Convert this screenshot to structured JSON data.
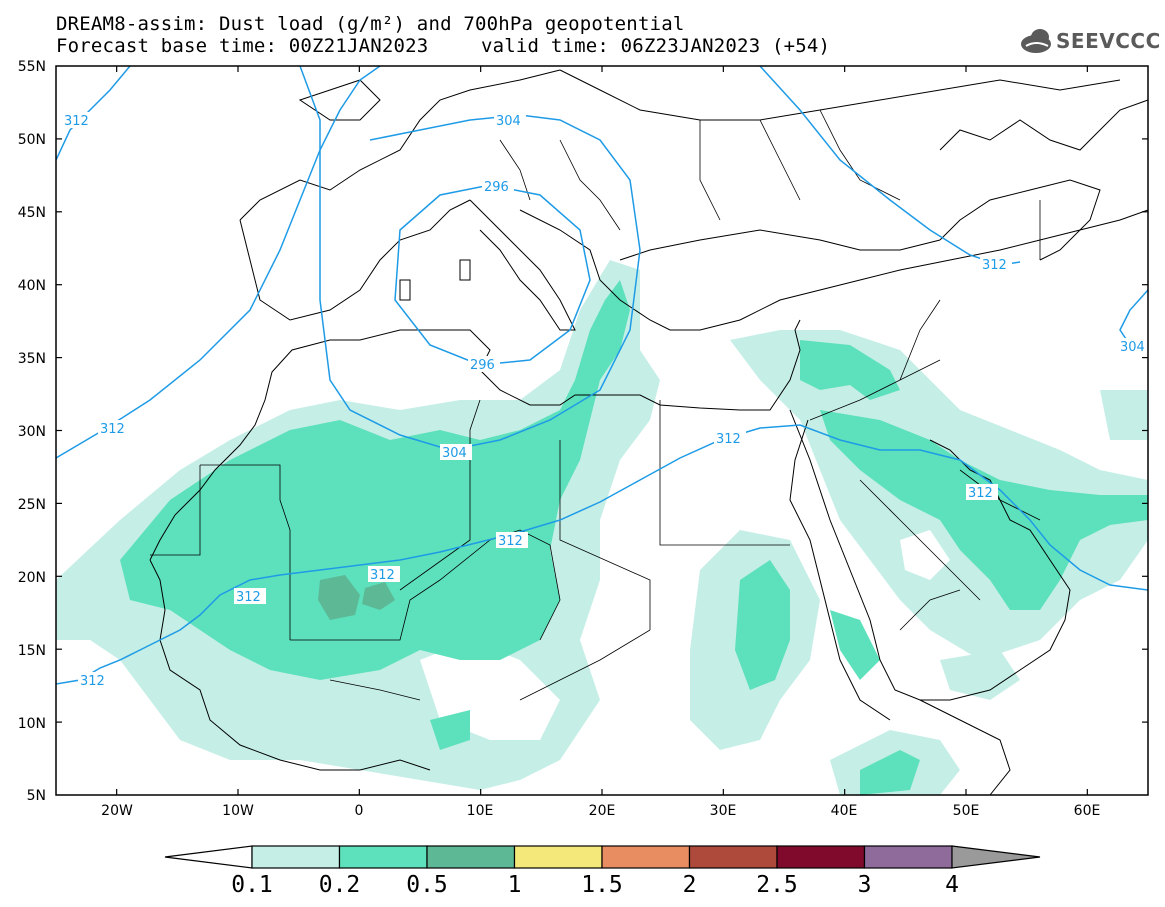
{
  "header": {
    "line1": "DREAM8-assim: Dust load (g/m²) and 700hPa geopotential",
    "line2_left": "Forecast base time: 00Z21JAN2023",
    "line2_right": "valid time: 06Z23JAN2023 (+54)"
  },
  "logo": {
    "text": "SEEVCCC",
    "icon": "cloud-icon"
  },
  "map": {
    "extent": {
      "lon_min": -25,
      "lon_max": 65,
      "lat_min": 5,
      "lat_max": 55
    },
    "lat_labels": [
      "55N",
      "50N",
      "45N",
      "40N",
      "35N",
      "30N",
      "25N",
      "20N",
      "15N",
      "10N",
      "5N"
    ],
    "lon_labels": [
      "20W",
      "10W",
      "0",
      "10E",
      "20E",
      "30E",
      "40E",
      "50E",
      "60E"
    ],
    "contour_labels": [
      "312",
      "304",
      "296",
      "312",
      "296",
      "304",
      "312",
      "312",
      "312",
      "312",
      "312",
      "312",
      "304",
      "312"
    ],
    "contour_color": "#1e9be6"
  },
  "colorbar": {
    "labels": [
      "0.1",
      "0.2",
      "0.5",
      "1",
      "1.5",
      "2",
      "2.5",
      "3",
      "4"
    ],
    "colors": [
      "#c5efe6",
      "#5de0bc",
      "#5db896",
      "#f5e87a",
      "#e88d62",
      "#ad4a3c",
      "#800a2c",
      "#8f6b9b",
      "#9a9a9a"
    ]
  }
}
